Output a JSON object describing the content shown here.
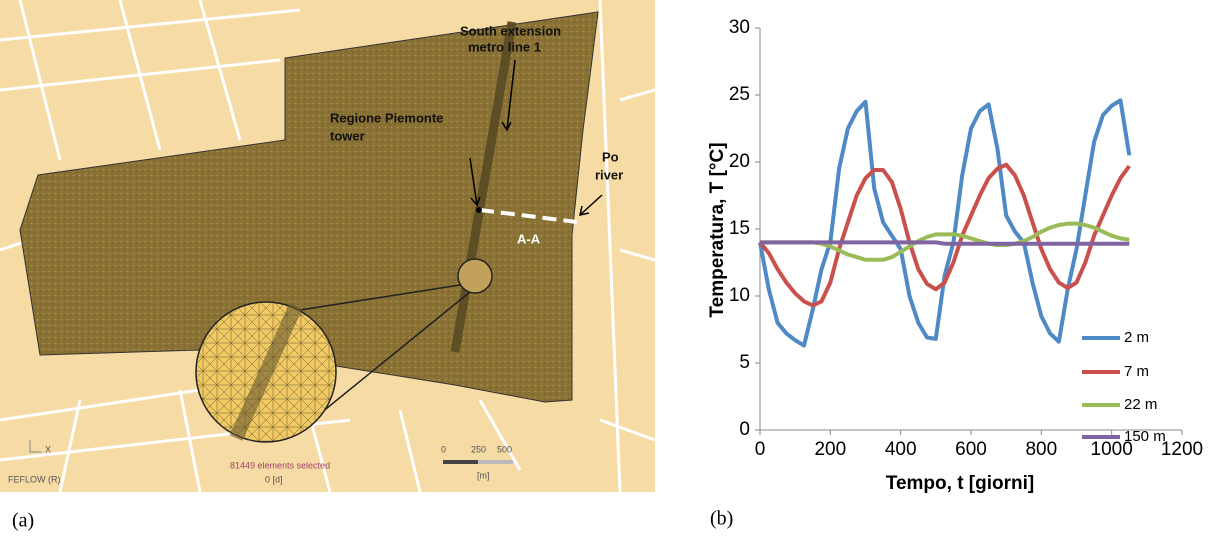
{
  "map": {
    "labels": [
      "South extension",
      "metro line 1",
      "Regione Piemonte",
      "tower",
      "Po",
      "river",
      "A-A"
    ],
    "scale": [
      "0",
      "250",
      "500",
      "[m]"
    ],
    "footer": [
      "FEFLOW (R)",
      "81449 elements selected",
      "0 [d]"
    ],
    "axis": "X"
  },
  "panel_labels": [
    "(a)",
    "(b)"
  ],
  "chart_data": {
    "type": "line",
    "xlabel": "Tempo, t [giorni]",
    "ylabel": "Temperatura, T [°C]",
    "x": [
      0,
      25,
      50,
      75,
      100,
      125,
      150,
      175,
      200,
      225,
      250,
      275,
      300,
      325,
      350,
      375,
      400,
      425,
      450,
      475,
      500,
      525,
      550,
      575,
      600,
      625,
      650,
      675,
      700,
      725,
      750,
      775,
      800,
      825,
      850,
      875,
      900,
      925,
      950,
      975,
      1000,
      1025,
      1050
    ],
    "series": [
      {
        "name": "2 m",
        "color": "#4f89c6",
        "values": [
          14,
          10.5,
          8,
          7.2,
          6.7,
          6.3,
          9,
          12,
          14,
          19.5,
          22.5,
          23.8,
          24.5,
          18,
          15.5,
          14.5,
          13.5,
          10,
          8,
          6.9,
          6.8,
          11.5,
          14,
          19,
          22.5,
          23.8,
          24.3,
          21,
          16,
          14.8,
          14,
          11,
          8.5,
          7.2,
          6.6,
          10.5,
          13.5,
          17.5,
          21.5,
          23.5,
          24.2,
          24.6,
          20.5
        ]
      },
      {
        "name": "7 m",
        "color": "#c9504d",
        "values": [
          14,
          13.2,
          12,
          11,
          10.2,
          9.6,
          9.3,
          9.6,
          11,
          13.5,
          15.5,
          17.5,
          18.8,
          19.4,
          19.4,
          18.5,
          16.5,
          14,
          12,
          10.9,
          10.5,
          11,
          12.5,
          14.5,
          16,
          17.5,
          18.8,
          19.5,
          19.8,
          19,
          17.5,
          15.5,
          13.5,
          12,
          11,
          10.6,
          11,
          12.5,
          14.5,
          16,
          17.5,
          18.8,
          19.7
        ]
      },
      {
        "name": "22 m",
        "color": "#9bbb59",
        "values": [
          14,
          14,
          14,
          14,
          14,
          14,
          14,
          13.9,
          13.7,
          13.4,
          13.1,
          12.9,
          12.7,
          12.7,
          12.7,
          12.9,
          13.3,
          13.7,
          14.1,
          14.4,
          14.6,
          14.6,
          14.6,
          14.5,
          14.3,
          14.1,
          13.9,
          13.8,
          13.8,
          13.9,
          14.1,
          14.4,
          14.8,
          15.1,
          15.3,
          15.4,
          15.4,
          15.3,
          15.1,
          14.8,
          14.5,
          14.3,
          14.2
        ]
      },
      {
        "name": "150 m",
        "color": "#8064a2",
        "values": [
          14,
          14,
          14,
          14,
          14,
          14,
          14,
          14,
          14,
          14,
          14,
          14,
          14,
          14,
          14,
          14,
          14,
          14,
          14,
          14,
          14,
          13.9,
          13.9,
          13.9,
          13.9,
          13.9,
          13.9,
          13.9,
          13.9,
          13.9,
          13.9,
          13.9,
          13.9,
          13.9,
          13.9,
          13.9,
          13.9,
          13.9,
          13.9,
          13.9,
          13.9,
          13.9,
          13.9
        ]
      }
    ],
    "xlim": [
      0,
      1200
    ],
    "xticks": [
      0,
      200,
      400,
      600,
      800,
      1000,
      1200
    ],
    "ylim": [
      0,
      30
    ],
    "yticks": [
      0,
      5,
      10,
      15,
      20,
      25,
      30
    ],
    "legend": "lower right"
  }
}
